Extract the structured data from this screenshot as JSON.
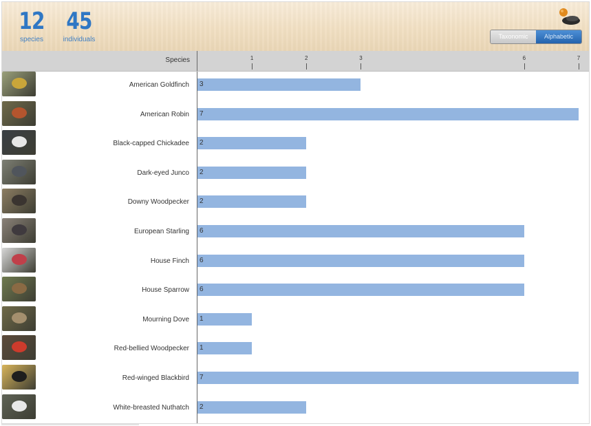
{
  "summary": {
    "species_count": "12",
    "species_label": "species",
    "individuals_count": "45",
    "individuals_label": "individuals"
  },
  "logo_icon": "bird-feeder-logo-icon",
  "sort_toggle": {
    "options": [
      "Taxonomic",
      "Alphabetic"
    ],
    "selected": "Alphabetic"
  },
  "colors": {
    "accent": "#2f77c4",
    "bar": "#93b5e0"
  },
  "chart_data": {
    "type": "bar",
    "orientation": "horizontal",
    "y_label": "Species",
    "x_ticks": [
      1,
      2,
      3,
      6,
      7
    ],
    "xlim": [
      0,
      7
    ],
    "categories": [
      "American Goldfinch",
      "American Robin",
      "Black-capped Chickadee",
      "Dark-eyed Junco",
      "Downy Woodpecker",
      "European Starling",
      "House Finch",
      "House Sparrow",
      "Mourning Dove",
      "Red-bellied Woodpecker",
      "Red-winged Blackbird",
      "White-breasted Nuthatch"
    ],
    "values": [
      3,
      7,
      2,
      2,
      2,
      6,
      6,
      6,
      1,
      1,
      7,
      2
    ],
    "grid": false,
    "legend": "none"
  }
}
